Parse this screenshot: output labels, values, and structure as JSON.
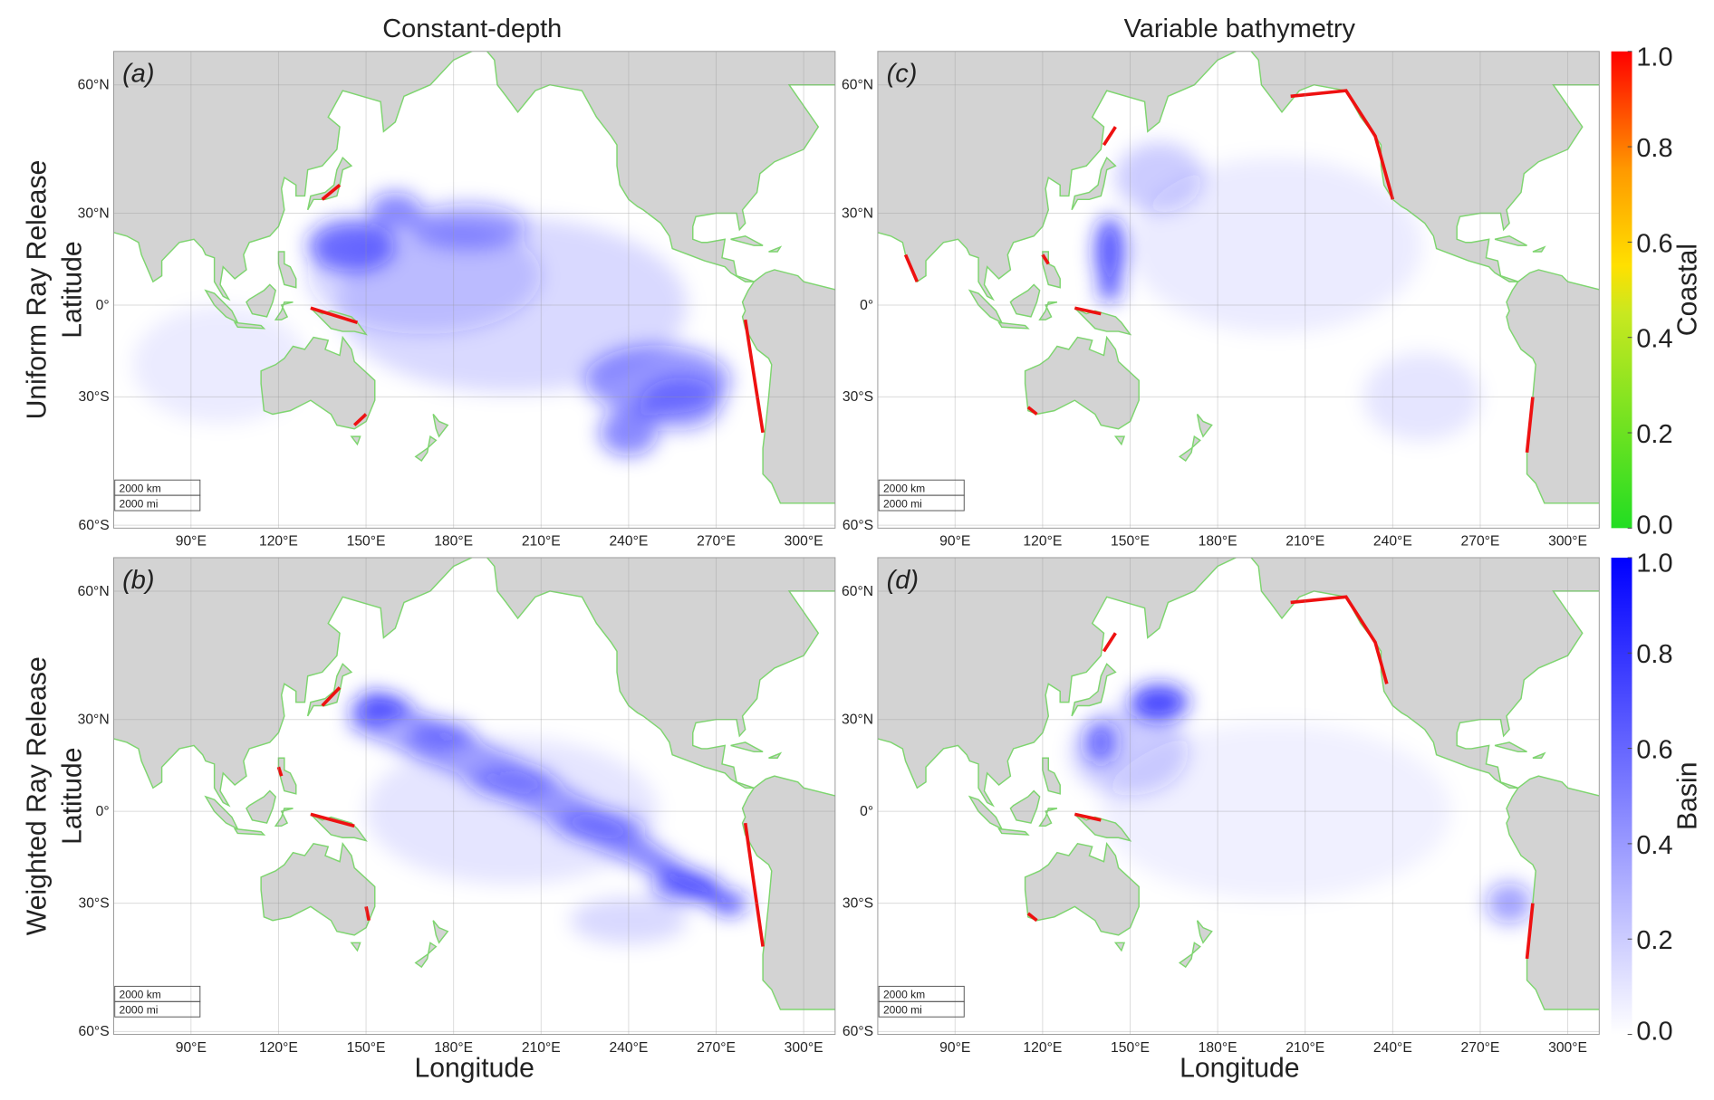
{
  "column_titles": [
    "Constant-depth",
    "Variable bathymetry"
  ],
  "row_titles": [
    "Uniform Ray Release",
    "Weighted Ray Release"
  ],
  "panels": [
    {
      "label": "(a)"
    },
    {
      "label": "(c)"
    },
    {
      "label": "(b)"
    },
    {
      "label": "(d)"
    }
  ],
  "axes": {
    "x_label": "Longitude",
    "y_label": "Latitude",
    "x_ticks": [
      {
        "value": 90,
        "label": "90°E"
      },
      {
        "value": 120,
        "label": "120°E"
      },
      {
        "value": 150,
        "label": "150°E"
      },
      {
        "value": 180,
        "label": "180°E"
      },
      {
        "value": 210,
        "label": "210°E"
      },
      {
        "value": 240,
        "label": "240°E"
      },
      {
        "value": 270,
        "label": "270°E"
      },
      {
        "value": 300,
        "label": "300°E"
      }
    ],
    "y_ticks": [
      {
        "value": 60,
        "label": "60°N"
      },
      {
        "value": 30,
        "label": "30°N"
      },
      {
        "value": 0,
        "label": "0°"
      },
      {
        "value": -30,
        "label": "30°S"
      },
      {
        "value": -60,
        "label": "60°S"
      }
    ]
  },
  "scale_bar": [
    "2000 km",
    "2000 mi"
  ],
  "colorbars": [
    {
      "label": "Coastal",
      "ticks": [
        {
          "value": 1,
          "label": "1.0"
        },
        {
          "value": 0.8,
          "label": "0.8"
        },
        {
          "value": 0.6,
          "label": "0.6"
        },
        {
          "value": 0.4,
          "label": "0.4"
        },
        {
          "value": 0.2,
          "label": "0.2"
        },
        {
          "value": 0,
          "label": "0.0"
        }
      ]
    },
    {
      "label": "Basin",
      "ticks": [
        {
          "value": 1,
          "label": "1.0"
        },
        {
          "value": 0.8,
          "label": "0.8"
        },
        {
          "value": 0.6,
          "label": "0.6"
        },
        {
          "value": 0.4,
          "label": "0.4"
        },
        {
          "value": 0.2,
          "label": "0.2"
        },
        {
          "value": 0,
          "label": "0.0"
        }
      ]
    }
  ]
}
